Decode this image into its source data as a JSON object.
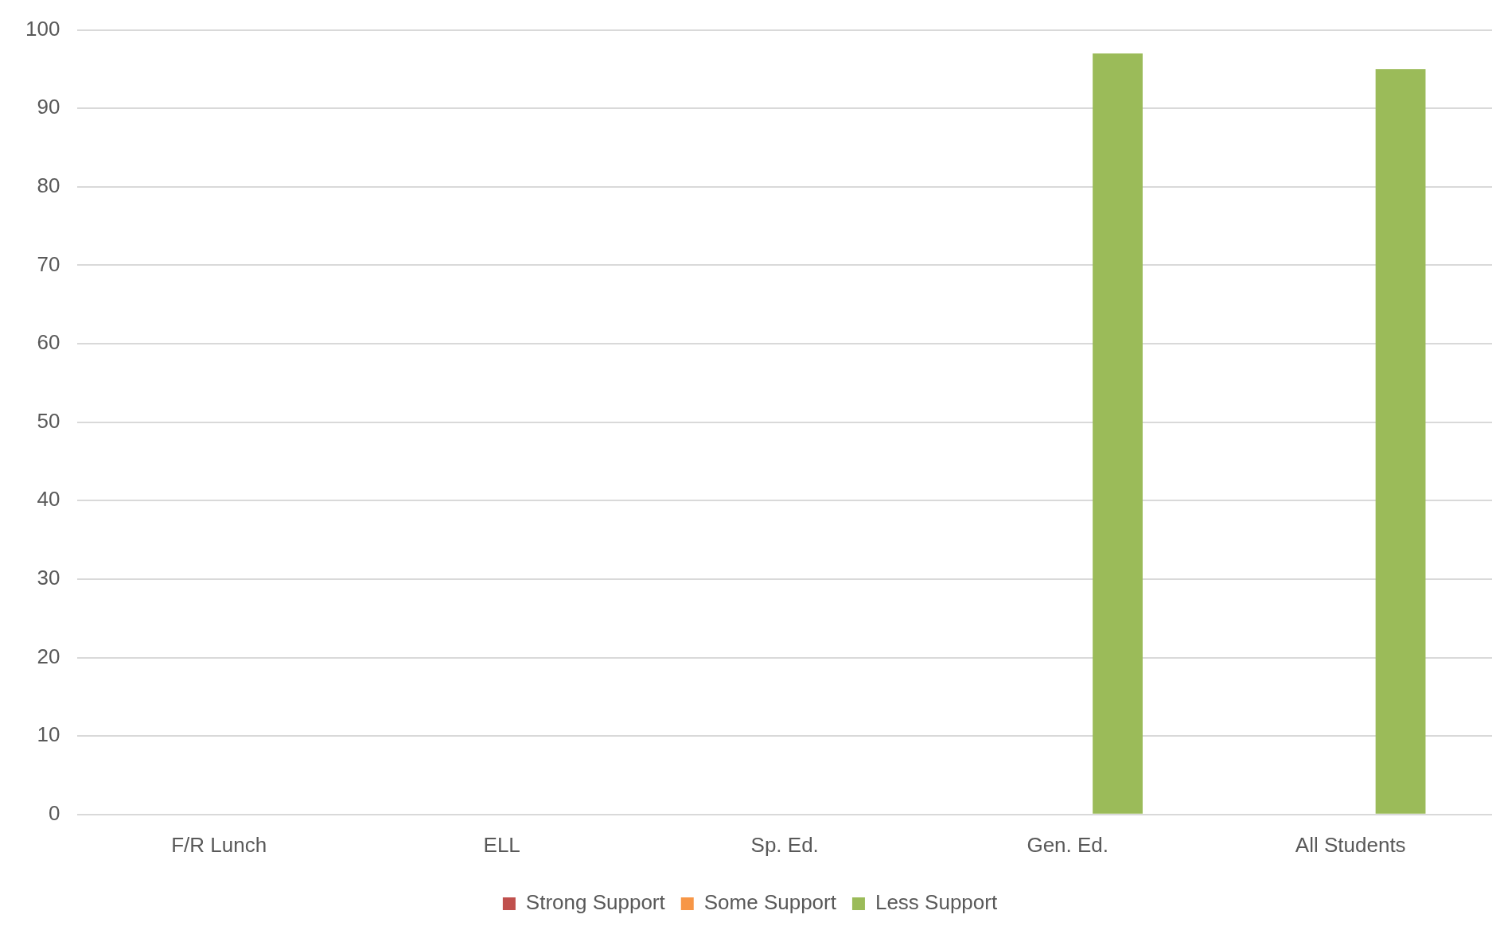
{
  "chart_data": {
    "type": "bar",
    "categories": [
      "F/R Lunch",
      "ELL",
      "Sp. Ed.",
      "Gen. Ed.",
      "All Students"
    ],
    "series": [
      {
        "name": "Strong Support",
        "color": "#c0504d",
        "values": [
          null,
          null,
          null,
          null,
          null
        ]
      },
      {
        "name": "Some Support",
        "color": "#f79646",
        "values": [
          null,
          null,
          null,
          null,
          null
        ]
      },
      {
        "name": "Less Support",
        "color": "#9bbb59",
        "values": [
          null,
          null,
          null,
          97,
          95
        ]
      }
    ],
    "ylim": [
      0,
      100
    ],
    "yticks": [
      0,
      10,
      20,
      30,
      40,
      50,
      60,
      70,
      80,
      90,
      100
    ],
    "grid": "y",
    "legend": "bottom"
  }
}
